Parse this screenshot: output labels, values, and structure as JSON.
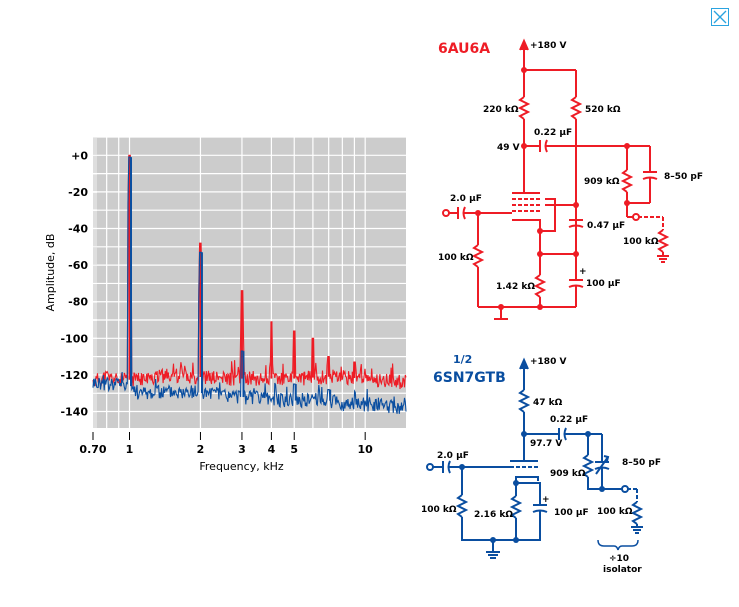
{
  "window": {
    "close_icon": "close-x-icon"
  },
  "chart_data": {
    "type": "line",
    "title": "",
    "xlabel": "Frequency, kHz",
    "ylabel": "Amplitude, dB",
    "x_scale": "log",
    "xlim": [
      0.7,
      14.9
    ],
    "ylim": [
      -149,
      10
    ],
    "grid": true,
    "background_color": "#cccccc",
    "grid_color": "#ffffff",
    "x_ticks": [
      {
        "value": 0.7,
        "label": "0.70"
      },
      {
        "value": 1,
        "label": "1"
      },
      {
        "value": 2,
        "label": "2"
      },
      {
        "value": 3,
        "label": "3"
      },
      {
        "value": 4,
        "label": "4"
      },
      {
        "value": 5,
        "label": "5"
      },
      {
        "value": 10,
        "label": "10"
      }
    ],
    "x_minor_grid": [
      0.8,
      0.9,
      6,
      7,
      8,
      9
    ],
    "y_ticks": [
      {
        "value": 0,
        "label": "+0"
      },
      {
        "value": -20,
        "label": "-20"
      },
      {
        "value": -40,
        "label": "-40"
      },
      {
        "value": -60,
        "label": "-60"
      },
      {
        "value": -80,
        "label": "-80"
      },
      {
        "value": -100,
        "label": "-100"
      },
      {
        "value": -120,
        "label": "-120"
      },
      {
        "value": -140,
        "label": "-140"
      }
    ],
    "y_grid_step": 10,
    "series": [
      {
        "name": "6AU6A",
        "color": "#ee1c25",
        "noise_floor_points": [
          [
            0.7,
            -124
          ],
          [
            0.75,
            -122
          ],
          [
            0.8,
            -121
          ],
          [
            0.9,
            -123
          ],
          [
            1.2,
            -122
          ],
          [
            1.5,
            -120
          ],
          [
            2.5,
            -122
          ],
          [
            3.5,
            -122
          ],
          [
            5,
            -122
          ],
          [
            7,
            -121
          ],
          [
            10,
            -122
          ],
          [
            14.9,
            -124
          ]
        ],
        "peaks": [
          {
            "freq": 1,
            "db": 0
          },
          {
            "freq": 2,
            "db": -48
          },
          {
            "freq": 3,
            "db": -74
          },
          {
            "freq": 4,
            "db": -91
          },
          {
            "freq": 5,
            "db": -96
          },
          {
            "freq": 6,
            "db": -100
          },
          {
            "freq": 7,
            "db": -110
          },
          {
            "freq": 9,
            "db": -113
          }
        ]
      },
      {
        "name": "1/2 6SN7GTB",
        "color": "#0a4ea0",
        "noise_floor_points": [
          [
            0.7,
            -124
          ],
          [
            0.8,
            -125
          ],
          [
            0.95,
            -124
          ],
          [
            1.1,
            -130
          ],
          [
            1.5,
            -129
          ],
          [
            2.0,
            -130
          ],
          [
            2.5,
            -131
          ],
          [
            3.5,
            -133
          ],
          [
            5,
            -134
          ],
          [
            6.5,
            -133
          ],
          [
            8,
            -136
          ],
          [
            10,
            -136
          ],
          [
            14.9,
            -138
          ]
        ],
        "peaks": [
          {
            "freq": 1,
            "db": -1
          },
          {
            "freq": 2,
            "db": -53
          },
          {
            "freq": 3,
            "db": -107
          },
          {
            "freq": 5,
            "db": -125
          },
          {
            "freq": 7,
            "db": -128
          }
        ]
      }
    ]
  },
  "schematic_top": {
    "title": "6AU6A",
    "color": "#ee1c25",
    "labels": {
      "supply": "+180 V",
      "r_plate": "220 kΩ",
      "r_screen": "520 kΩ",
      "c_couple": "0.22 µF",
      "plate_voltage": "49 V",
      "r_probe": "909 kΩ",
      "c_trim": "8–50 pF",
      "c_input": "2.0 µF",
      "c_screen": "0.47 µF",
      "r_grid": "100 kΩ",
      "r_load": "100 kΩ",
      "r_cathode": "1.42 kΩ",
      "c_cathode": "100 µF",
      "polarity": "+"
    }
  },
  "schematic_bottom": {
    "title_fraction": "1/2",
    "title": "6SN7GTB",
    "color": "#0a4ea0",
    "labels": {
      "supply": "+180 V",
      "r_plate": "47 kΩ",
      "c_couple": "0.22 µF",
      "plate_voltage": "97.7 V",
      "c_input": "2.0 µF",
      "r_probe": "909 kΩ",
      "c_trim": "8–50 pF",
      "r_grid": "100 kΩ",
      "r_cathode": "2.16 kΩ",
      "c_cathode": "100 µF",
      "r_load": "100 kΩ",
      "polarity": "+",
      "isolator_ratio": "÷10",
      "isolator": "isolator"
    }
  }
}
